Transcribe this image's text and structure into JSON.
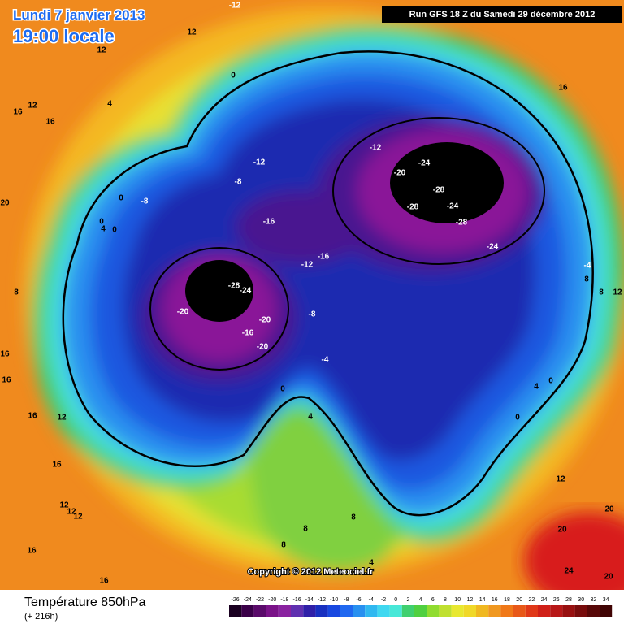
{
  "header": {
    "date": "Lundi 7 janvier 2013",
    "time": "19:00 locale",
    "run": "Run GFS 18 Z du Samedi 29 décembre 2012"
  },
  "footer": {
    "title": "Température 850hPa",
    "lead": "(+ 216h)",
    "copyright": "Copyright © 2012 Meteociel.fr"
  },
  "legend": {
    "ticks": [
      -26,
      -24,
      -22,
      -20,
      -18,
      -16,
      -14,
      -12,
      -10,
      -8,
      -6,
      -4,
      -2,
      0,
      2,
      4,
      6,
      8,
      10,
      12,
      14,
      16,
      18,
      20,
      22,
      24,
      26,
      28,
      30,
      32,
      34
    ],
    "colors": [
      "#1a0020",
      "#3a0048",
      "#5a0a6a",
      "#7a1288",
      "#8a22a0",
      "#6030b0",
      "#3020a8",
      "#1830c0",
      "#1848e0",
      "#2068f0",
      "#2890f0",
      "#30b8f0",
      "#40d8f0",
      "#48e8d8",
      "#40d070",
      "#50d040",
      "#90dc30",
      "#c0e030",
      "#e8e830",
      "#f0d828",
      "#f0b820",
      "#f09820",
      "#f07818",
      "#e85818",
      "#e03818",
      "#d02018",
      "#b81818",
      "#981010",
      "#780c0c",
      "#580808",
      "#400404"
    ]
  },
  "map": {
    "labels": [
      -12,
      12,
      12,
      4,
      12,
      16,
      16,
      16,
      0,
      -12,
      -12,
      -24,
      -20,
      -8,
      0,
      -8,
      -28,
      -28,
      -24,
      -28,
      0,
      4,
      0,
      -16,
      -24,
      -16,
      -12,
      -4,
      8,
      -28,
      -24,
      8,
      12,
      8,
      -20,
      -8,
      -20,
      -16,
      -20,
      -4,
      16,
      16,
      4,
      0,
      0,
      16,
      12,
      4,
      0,
      20,
      16,
      12,
      12,
      12,
      12,
      8,
      8,
      8,
      20,
      16,
      20,
      4,
      16,
      24,
      20
    ]
  }
}
